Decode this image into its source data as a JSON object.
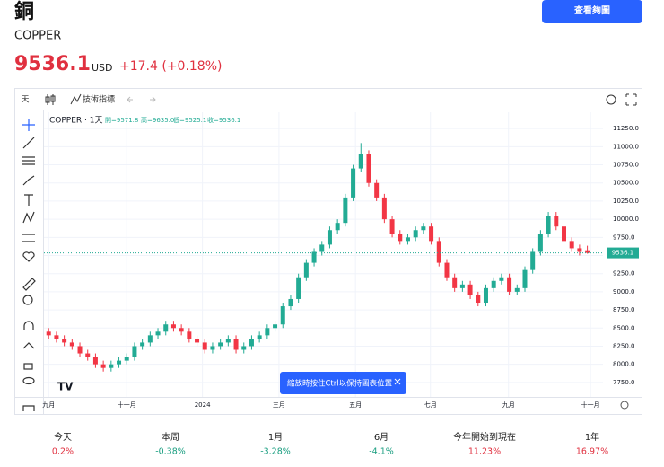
{
  "header": {
    "title": "銅",
    "symbol": "COPPER",
    "price": "9536.1",
    "currency": "USD",
    "change": "+17.4 (+0.18%)",
    "button": "查看夠圖"
  },
  "toolbar": {
    "interval": "天",
    "indicators": "技術指標"
  },
  "chart_data": {
    "type": "candlestick",
    "legend_symbol": "COPPER · 1天",
    "legend": {
      "open": "開=9571.8",
      "high": "高=9635.0",
      "low": "低=9525.1",
      "close": "收=9536.1"
    },
    "up_color": "#22ab94",
    "down_color": "#f23645",
    "x": [
      0,
      1,
      2,
      3,
      4,
      5,
      6,
      7,
      8,
      9,
      10,
      11,
      12,
      13,
      14,
      15,
      16,
      17,
      18,
      19,
      20,
      21,
      22,
      23,
      24,
      25,
      26,
      27,
      28,
      29,
      30,
      31,
      32,
      33,
      34,
      35,
      36,
      37,
      38,
      39,
      40,
      41,
      42,
      43,
      44,
      45,
      46,
      47,
      48,
      49,
      50,
      51,
      52,
      53,
      54,
      55,
      56,
      57,
      58,
      59,
      60,
      61,
      62,
      63,
      64,
      65,
      66,
      67,
      68,
      69
    ],
    "open": [
      8450,
      8400,
      8350,
      8300,
      8250,
      8150,
      8100,
      8000,
      7950,
      8000,
      8050,
      8100,
      8250,
      8300,
      8400,
      8450,
      8550,
      8500,
      8450,
      8350,
      8300,
      8200,
      8250,
      8300,
      8350,
      8200,
      8250,
      8350,
      8400,
      8500,
      8550,
      8800,
      8900,
      9200,
      9400,
      9550,
      9650,
      9850,
      9950,
      10300,
      10700,
      10900,
      10500,
      10300,
      10000,
      9800,
      9700,
      9750,
      9850,
      9900,
      9700,
      9400,
      9200,
      9050,
      9100,
      8950,
      8850,
      9050,
      9150,
      9200,
      9000,
      9050,
      9300,
      9550,
      9800,
      10050,
      9900,
      9700,
      9600,
      9571.8
    ],
    "high": [
      8500,
      8450,
      8400,
      8350,
      8300,
      8200,
      8150,
      8050,
      8050,
      8100,
      8150,
      8300,
      8350,
      8450,
      8500,
      8600,
      8600,
      8550,
      8500,
      8400,
      8350,
      8300,
      8350,
      8400,
      8400,
      8300,
      8400,
      8450,
      8550,
      8600,
      8850,
      8950,
      9250,
      9450,
      9600,
      9700,
      9900,
      10000,
      10350,
      10750,
      11050,
      10950,
      10550,
      10350,
      10050,
      9850,
      9800,
      9900,
      9950,
      9950,
      9750,
      9450,
      9250,
      9150,
      9150,
      9000,
      9100,
      9200,
      9250,
      9250,
      9100,
      9350,
      9600,
      9850,
      10100,
      10100,
      9950,
      9750,
      9650,
      9635
    ],
    "low": [
      8350,
      8300,
      8250,
      8200,
      8100,
      8050,
      7950,
      7900,
      7900,
      7950,
      8000,
      8050,
      8200,
      8250,
      8350,
      8400,
      8450,
      8400,
      8300,
      8250,
      8150,
      8150,
      8200,
      8250,
      8150,
      8150,
      8200,
      8300,
      8350,
      8450,
      8500,
      8750,
      8850,
      9150,
      9350,
      9500,
      9600,
      9800,
      9900,
      10250,
      10650,
      10450,
      10250,
      9950,
      9750,
      9650,
      9650,
      9700,
      9800,
      9650,
      9350,
      9150,
      9000,
      9000,
      8900,
      8800,
      8800,
      9000,
      9100,
      8950,
      8950,
      9000,
      9250,
      9500,
      9750,
      9850,
      9650,
      9550,
      9500,
      9525.1
    ],
    "close": [
      8400,
      8350,
      8300,
      8250,
      8150,
      8100,
      8000,
      7950,
      8000,
      8050,
      8100,
      8250,
      8300,
      8400,
      8450,
      8550,
      8500,
      8450,
      8350,
      8300,
      8200,
      8250,
      8300,
      8350,
      8200,
      8250,
      8350,
      8400,
      8500,
      8550,
      8800,
      8900,
      9200,
      9400,
      9550,
      9650,
      9850,
      9950,
      10300,
      10700,
      10900,
      10500,
      10300,
      10000,
      9800,
      9700,
      9750,
      9850,
      9900,
      9700,
      9400,
      9200,
      9050,
      9100,
      8950,
      8850,
      9050,
      9150,
      9200,
      9000,
      9050,
      9300,
      9550,
      9800,
      10050,
      9900,
      9700,
      9600,
      9550,
      9536.1
    ],
    "xlim": [
      -0.6,
      71
    ],
    "xticks": [
      {
        "value": 0,
        "label": "九月"
      },
      {
        "value": 10,
        "label": "十一月"
      },
      {
        "value": 19.7,
        "label": "2024"
      },
      {
        "value": 29.5,
        "label": "三月"
      },
      {
        "value": 39.3,
        "label": "五月"
      },
      {
        "value": 48.9,
        "label": "七月"
      },
      {
        "value": 58.9,
        "label": "九月"
      },
      {
        "value": 69.4,
        "label": "十一月"
      }
    ],
    "ylim": [
      7550,
      11475
    ],
    "yticks": [
      {
        "value": 7750,
        "label": "7750.0"
      },
      {
        "value": 8000,
        "label": "8000.0"
      },
      {
        "value": 8250,
        "label": "8250.0"
      },
      {
        "value": 8500,
        "label": "8500.0"
      },
      {
        "value": 8750,
        "label": "8750.0"
      },
      {
        "value": 9000,
        "label": "9000.0"
      },
      {
        "value": 9250,
        "label": "9250.0"
      },
      {
        "value": 9500,
        "label": "9500.0"
      },
      {
        "value": 9750,
        "label": "9750.0"
      },
      {
        "value": 10000,
        "label": "10000.0"
      },
      {
        "value": 10250,
        "label": "10250.0"
      },
      {
        "value": 10500,
        "label": "10500.0"
      },
      {
        "value": 10750,
        "label": "10750.0"
      },
      {
        "value": 11000,
        "label": "11000.0"
      },
      {
        "value": 11250,
        "label": "11250.0"
      }
    ],
    "grid": true
  },
  "tooltip": "縮放時按住Ctrl以保持圖表位置",
  "performance": [
    {
      "label": "今天",
      "value": "0.2%"
    },
    {
      "label": "本周",
      "value": "-0.38%"
    },
    {
      "label": "1月",
      "value": "-3.28%"
    },
    {
      "label": "6月",
      "value": "-4.1%"
    },
    {
      "label": "今年開始到現在",
      "value": "11.23%"
    },
    {
      "label": "1年",
      "value": "16.97%"
    }
  ]
}
